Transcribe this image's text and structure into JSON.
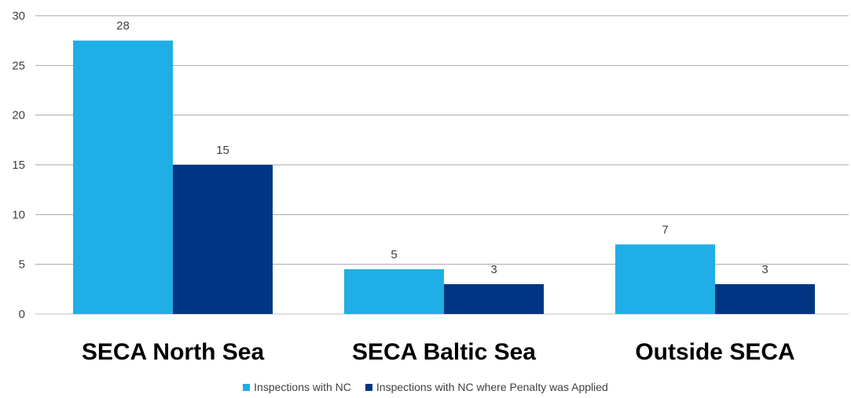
{
  "chart_data": {
    "type": "bar",
    "categories": [
      "SECA North Sea",
      "SECA Baltic Sea",
      "Outside SECA"
    ],
    "series": [
      {
        "name": "Inspections with NC",
        "values": [
          27.5,
          4.5,
          7
        ],
        "labels": [
          "28",
          "5",
          "7"
        ],
        "color": "#1FAEE5"
      },
      {
        "name": "Inspections with NC where Penalty was Applied",
        "values": [
          15,
          3,
          3
        ],
        "labels": [
          "15",
          "3",
          "3"
        ],
        "color": "#003584"
      }
    ],
    "ylim": [
      0,
      30
    ],
    "yticks": [
      "0",
      "5",
      "10",
      "15",
      "20",
      "25",
      "30"
    ],
    "grid": true,
    "legend_position": "bottom",
    "title": "",
    "xlabel": "",
    "ylabel": ""
  }
}
